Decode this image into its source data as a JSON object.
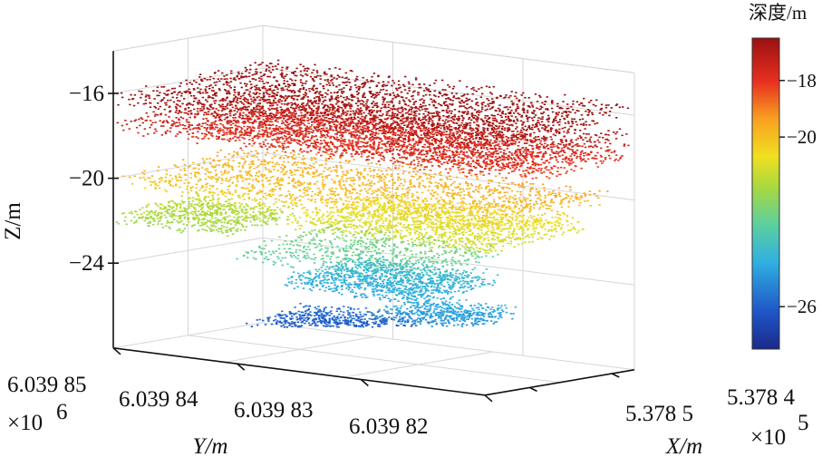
{
  "chart_data": {
    "type": "scatter",
    "dimensions": 3,
    "x_axis": {
      "label": "X/m",
      "ticks": [
        "5.378 5",
        "5.378 4"
      ],
      "multiplier": "×10^5"
    },
    "y_axis": {
      "label": "Y/m",
      "ticks": [
        "6.039 85",
        "6.039 84",
        "6.039 83",
        "6.039 82"
      ],
      "multiplier": "×10^6"
    },
    "z_axis": {
      "label": "Z/m",
      "ticks": [
        -16,
        -20,
        -24
      ],
      "zlim": [
        -28,
        -14
      ]
    },
    "colorbar": {
      "title": "深度/m",
      "ticks": [
        -18,
        -20,
        -26
      ],
      "range": [
        -27.5,
        -16.5
      ],
      "colormap": "jet"
    },
    "grid": true,
    "layers": [
      {
        "depth": -16.0,
        "extent": "full"
      },
      {
        "depth": -17.2,
        "extent": "full"
      },
      {
        "depth": -18.0,
        "extent": "back"
      },
      {
        "depth": -19.8,
        "extent": "front-wide"
      },
      {
        "depth": -20.8,
        "extent": "right"
      },
      {
        "depth": -21.5,
        "extent": "left-patch"
      },
      {
        "depth": -22.8,
        "extent": "center-sparse"
      },
      {
        "depth": -24.2,
        "extent": "center-blue"
      },
      {
        "depth": -25.8,
        "extent": "center-deep"
      },
      {
        "depth": -24.5,
        "extent": "right-patch"
      },
      {
        "depth": -26.0,
        "extent": "right-deep"
      }
    ]
  },
  "labels": {
    "z_title": "Z/m",
    "y_title": "Y/m",
    "x_title": "X/m",
    "y_mult": "×10",
    "y_exp": "6",
    "x_mult": "×10",
    "x_exp": "5",
    "cb_title": "深度/m"
  }
}
